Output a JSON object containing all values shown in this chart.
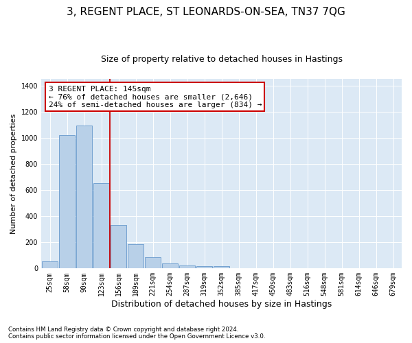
{
  "title": "3, REGENT PLACE, ST LEONARDS-ON-SEA, TN37 7QG",
  "subtitle": "Size of property relative to detached houses in Hastings",
  "xlabel": "Distribution of detached houses by size in Hastings",
  "ylabel": "Number of detached properties",
  "footnote": "Contains HM Land Registry data © Crown copyright and database right 2024.\nContains public sector information licensed under the Open Government Licence v3.0.",
  "categories": [
    "25sqm",
    "58sqm",
    "90sqm",
    "123sqm",
    "156sqm",
    "189sqm",
    "221sqm",
    "254sqm",
    "287sqm",
    "319sqm",
    "352sqm",
    "385sqm",
    "417sqm",
    "450sqm",
    "483sqm",
    "516sqm",
    "548sqm",
    "581sqm",
    "614sqm",
    "646sqm",
    "679sqm"
  ],
  "values": [
    55,
    1020,
    1095,
    650,
    330,
    185,
    85,
    38,
    25,
    20,
    15,
    0,
    0,
    0,
    0,
    0,
    0,
    0,
    0,
    0,
    0
  ],
  "bar_color": "#b8d0e8",
  "bar_edge_color": "#6699cc",
  "vline_color": "#cc0000",
  "annotation_text": "3 REGENT PLACE: 145sqm\n← 76% of detached houses are smaller (2,646)\n24% of semi-detached houses are larger (834) →",
  "annotation_box_color": "#ffffff",
  "annotation_box_edge": "#cc0000",
  "ylim": [
    0,
    1450
  ],
  "yticks": [
    0,
    200,
    400,
    600,
    800,
    1000,
    1200,
    1400
  ],
  "plot_bg_color": "#dce9f5",
  "fig_bg_color": "#ffffff",
  "title_fontsize": 11,
  "subtitle_fontsize": 9,
  "tick_fontsize": 7,
  "ylabel_fontsize": 8,
  "xlabel_fontsize": 9,
  "annotation_fontsize": 8
}
